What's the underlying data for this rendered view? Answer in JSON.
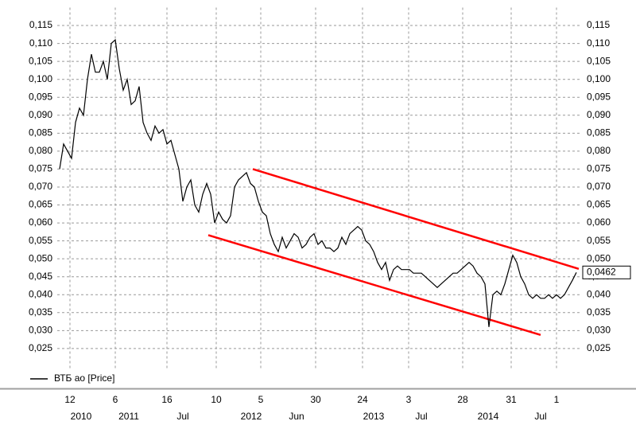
{
  "chart_data": {
    "type": "line",
    "legend": "ВТБ ао [Price]",
    "series": [
      {
        "name": "ВТБ ао [Price]",
        "color": "#000000",
        "x": [
          0,
          1,
          2,
          3,
          4,
          5,
          6,
          7,
          8,
          9,
          10,
          11,
          12,
          13,
          14,
          15,
          16,
          17,
          18,
          19,
          20,
          21,
          22,
          23,
          24,
          25,
          26,
          27,
          28,
          29,
          30,
          31,
          32,
          33,
          34,
          35,
          36,
          37,
          38,
          39,
          40,
          41,
          42,
          43,
          44,
          45,
          46,
          47,
          48,
          49,
          50,
          51,
          52,
          53,
          54,
          55,
          56,
          57,
          58,
          59,
          60,
          61,
          62,
          63,
          64,
          65,
          66,
          67,
          68,
          69,
          70,
          71,
          72,
          73,
          74,
          75,
          76,
          77,
          78,
          79,
          80,
          81,
          82,
          83,
          84,
          85,
          86,
          87,
          88,
          89,
          90,
          91,
          92,
          93,
          94,
          95,
          96,
          97,
          98,
          99,
          100,
          101,
          102,
          103,
          104,
          105,
          106,
          107,
          108,
          109,
          110,
          111,
          112,
          113,
          114,
          115,
          116,
          117,
          118,
          119,
          120,
          121,
          122,
          123,
          124,
          125,
          126,
          127,
          128,
          129,
          130
        ],
        "values": [
          0.075,
          0.082,
          0.08,
          0.078,
          0.088,
          0.092,
          0.09,
          0.1,
          0.107,
          0.102,
          0.102,
          0.105,
          0.1,
          0.11,
          0.111,
          0.103,
          0.097,
          0.1,
          0.093,
          0.094,
          0.098,
          0.088,
          0.085,
          0.083,
          0.087,
          0.085,
          0.086,
          0.082,
          0.083,
          0.079,
          0.075,
          0.066,
          0.07,
          0.072,
          0.065,
          0.063,
          0.068,
          0.071,
          0.068,
          0.06,
          0.063,
          0.061,
          0.06,
          0.062,
          0.07,
          0.072,
          0.073,
          0.074,
          0.071,
          0.07,
          0.066,
          0.063,
          0.062,
          0.057,
          0.054,
          0.052,
          0.056,
          0.053,
          0.055,
          0.057,
          0.056,
          0.053,
          0.054,
          0.056,
          0.057,
          0.054,
          0.055,
          0.053,
          0.053,
          0.052,
          0.053,
          0.056,
          0.054,
          0.057,
          0.058,
          0.059,
          0.058,
          0.055,
          0.054,
          0.052,
          0.049,
          0.047,
          0.049,
          0.044,
          0.047,
          0.048,
          0.047,
          0.047,
          0.047,
          0.046,
          0.046,
          0.046,
          0.045,
          0.044,
          0.043,
          0.042,
          0.043,
          0.044,
          0.045,
          0.046,
          0.046,
          0.047,
          0.048,
          0.049,
          0.048,
          0.046,
          0.045,
          0.043,
          0.031,
          0.04,
          0.041,
          0.04,
          0.043,
          0.047,
          0.051,
          0.049,
          0.045,
          0.043,
          0.04,
          0.039,
          0.04,
          0.039,
          0.039,
          0.04,
          0.039,
          0.04,
          0.039,
          0.04,
          0.042,
          0.044,
          0.0462
        ]
      }
    ],
    "trend_lines": [
      {
        "color": "#ff0000",
        "x": [
          48.6,
          130.6
        ],
        "values": [
          0.075,
          0.0472
        ]
      },
      {
        "color": "#ff0000",
        "x": [
          37.4,
          121
        ],
        "values": [
          0.0566,
          0.0288
        ]
      }
    ],
    "last_value": {
      "value": 0.0462,
      "label": "0,0462"
    },
    "xlim": [
      -0.6,
      131
    ],
    "ylim": [
      0.015,
      0.12
    ],
    "xticks": [
      {
        "value": 2.6,
        "label": "12"
      },
      {
        "value": 14,
        "label": "6"
      },
      {
        "value": 27,
        "label": "16"
      },
      {
        "value": 39.4,
        "label": "10"
      },
      {
        "value": 50.6,
        "label": "5"
      },
      {
        "value": 64.4,
        "label": "30"
      },
      {
        "value": 76.2,
        "label": "24"
      },
      {
        "value": 87.8,
        "label": "3"
      },
      {
        "value": 101.4,
        "label": "28"
      },
      {
        "value": 113.6,
        "label": "31"
      },
      {
        "value": 125,
        "label": "1"
      }
    ],
    "xticks2": [
      {
        "value": 5.4,
        "label": "2010"
      },
      {
        "value": 17.4,
        "label": "2011"
      },
      {
        "value": 31,
        "label": "Jul"
      },
      {
        "value": 48.2,
        "label": "2012"
      },
      {
        "value": 59.6,
        "label": "Jun"
      },
      {
        "value": 79,
        "label": "2013"
      },
      {
        "value": 91,
        "label": "Jul"
      },
      {
        "value": 107.8,
        "label": "2014"
      },
      {
        "value": 121,
        "label": "Jul"
      }
    ],
    "yticks": [
      {
        "value": 0.025,
        "label": "0,025"
      },
      {
        "value": 0.03,
        "label": "0,030"
      },
      {
        "value": 0.035,
        "label": "0,035"
      },
      {
        "value": 0.04,
        "label": "0,040"
      },
      {
        "value": 0.045,
        "label": "0,045"
      },
      {
        "value": 0.05,
        "label": "0,050"
      },
      {
        "value": 0.055,
        "label": "0,055"
      },
      {
        "value": 0.06,
        "label": "0,060"
      },
      {
        "value": 0.065,
        "label": "0,065"
      },
      {
        "value": 0.07,
        "label": "0,070"
      },
      {
        "value": 0.075,
        "label": "0,075"
      },
      {
        "value": 0.08,
        "label": "0,080"
      },
      {
        "value": 0.085,
        "label": "0,085"
      },
      {
        "value": 0.09,
        "label": "0,090"
      },
      {
        "value": 0.095,
        "label": "0,095"
      },
      {
        "value": 0.1,
        "label": "0,100"
      },
      {
        "value": 0.105,
        "label": "0,105"
      },
      {
        "value": 0.11,
        "label": "0,110"
      },
      {
        "value": 0.115,
        "label": "0,115"
      }
    ],
    "grid": true
  }
}
